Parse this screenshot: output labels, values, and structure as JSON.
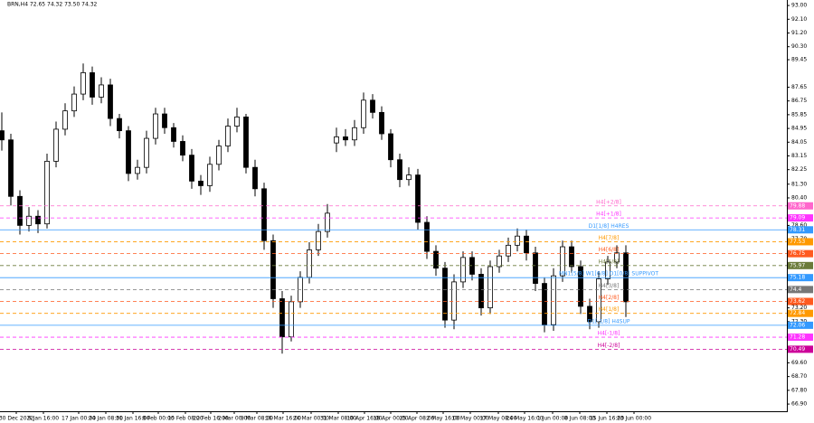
{
  "chart_data": {
    "type": "candlestick",
    "title": "BRN,H4  72.65 74.32 73.50 74.32",
    "ylim": [
      66.43,
      93.36
    ],
    "yticks": [
      {
        "value": 93.0,
        "label": "93.00"
      },
      {
        "value": 92.1,
        "label": "92.10"
      },
      {
        "value": 91.2,
        "label": "91.20"
      },
      {
        "value": 90.3,
        "label": "90.30"
      },
      {
        "value": 89.45,
        "label": "89.45"
      },
      {
        "value": 87.65,
        "label": "87.65"
      },
      {
        "value": 86.75,
        "label": "86.75"
      },
      {
        "value": 85.85,
        "label": "85.85"
      },
      {
        "value": 84.95,
        "label": "84.95"
      },
      {
        "value": 84.05,
        "label": "84.05"
      },
      {
        "value": 83.15,
        "label": "83.15"
      },
      {
        "value": 82.25,
        "label": "82.25"
      },
      {
        "value": 81.3,
        "label": "81.30"
      },
      {
        "value": 80.4,
        "label": "80.40"
      },
      {
        "value": 78.6,
        "label": "78.60"
      },
      {
        "value": 77.7,
        "label": "77.70"
      },
      {
        "value": 73.2,
        "label": "73.20"
      },
      {
        "value": 72.3,
        "label": "72.30"
      },
      {
        "value": 70.5,
        "label": "70.50"
      },
      {
        "value": 69.6,
        "label": "69.60"
      },
      {
        "value": 68.7,
        "label": "68.70"
      },
      {
        "value": 67.8,
        "label": "67.80"
      },
      {
        "value": 66.9,
        "label": "66.90"
      }
    ],
    "xlim": [
      -0.2,
      86.8
    ],
    "xticks": [
      {
        "value": 1.6,
        "label": "30 Dec 2022"
      },
      {
        "value": 4.6,
        "label": "9 Jan 16:00"
      },
      {
        "value": 8.5,
        "label": "17 Jan 00:00"
      },
      {
        "value": 11.5,
        "label": "24 Jan 08:00"
      },
      {
        "value": 14.5,
        "label": "31 Jan 16:00"
      },
      {
        "value": 17.3,
        "label": "8 Feb 00:00"
      },
      {
        "value": 20.3,
        "label": "15 Feb 08:00"
      },
      {
        "value": 23.1,
        "label": "22 Feb 16:00"
      },
      {
        "value": 25.7,
        "label": "2 Mar 00:00"
      },
      {
        "value": 28.2,
        "label": "9 Mar 08:00"
      },
      {
        "value": 31.1,
        "label": "16 Mar 16:00"
      },
      {
        "value": 34.2,
        "label": "24 Mar 00:00"
      },
      {
        "value": 37.2,
        "label": "31 Mar 08:00"
      },
      {
        "value": 40.1,
        "label": "10 Apr 16:00"
      },
      {
        "value": 43.0,
        "label": "18 Apr 00:00"
      },
      {
        "value": 45.9,
        "label": "25 Apr 08:00"
      },
      {
        "value": 48.8,
        "label": "2 May 16:00"
      },
      {
        "value": 51.8,
        "label": "10 May 00:00"
      },
      {
        "value": 54.9,
        "label": "17 May 08:00"
      },
      {
        "value": 57.8,
        "label": "24 May 16:00"
      },
      {
        "value": 60.9,
        "label": "1 Jun 00:00"
      },
      {
        "value": 63.9,
        "label": "8 Jun 08:00"
      },
      {
        "value": 66.9,
        "label": "15 Jun 16:00"
      },
      {
        "value": 69.9,
        "label": "23 Jun 00:00"
      }
    ],
    "up_color": "#ffffff",
    "down_color": "#000000",
    "open": [
      84.8,
      84.2,
      80.5,
      78.6,
      79.2,
      78.7,
      82.8,
      84.9,
      86.1,
      87.2,
      88.6,
      87.0,
      87.8,
      85.6,
      84.8,
      82.0,
      82.4,
      84.3,
      85.9,
      85.0,
      84.1,
      83.2,
      81.5,
      81.2,
      82.6,
      83.8,
      85.1,
      85.7,
      82.4,
      81.0,
      77.6,
      73.8,
      71.3,
      73.6,
      75.2,
      77.0,
      78.2,
      84.0,
      84.4,
      84.2,
      85.0,
      86.8,
      86.0,
      84.6,
      82.9,
      81.6,
      81.9,
      78.8,
      76.9,
      75.8,
      72.4,
      74.9,
      76.5,
      75.4,
      73.2,
      75.9,
      76.6,
      77.3,
      77.9,
      76.8,
      74.8,
      72.1,
      75.3,
      77.2,
      75.9,
      73.3,
      72.3,
      75.1,
      76.2,
      76.8
    ],
    "high": [
      86.0,
      84.6,
      80.9,
      79.8,
      79.6,
      83.3,
      85.4,
      86.6,
      87.7,
      89.2,
      89.0,
      88.3,
      88.2,
      85.9,
      85.1,
      82.9,
      84.8,
      86.3,
      86.3,
      85.3,
      84.5,
      83.6,
      81.9,
      83.1,
      84.2,
      85.6,
      86.3,
      85.9,
      82.9,
      81.4,
      78.0,
      74.3,
      74.0,
      75.6,
      77.5,
      78.7,
      80.0,
      85.0,
      84.9,
      85.5,
      87.3,
      87.2,
      86.4,
      84.9,
      83.3,
      82.4,
      82.3,
      79.2,
      77.3,
      76.2,
      75.4,
      76.9,
      76.9,
      75.8,
      76.3,
      77.0,
      77.8,
      78.4,
      78.3,
      77.2,
      75.2,
      75.8,
      77.6,
      77.6,
      76.3,
      73.8,
      75.6,
      76.6,
      77.3,
      77.3
    ],
    "low": [
      83.5,
      79.9,
      78.0,
      78.2,
      78.1,
      78.4,
      82.4,
      84.5,
      85.7,
      86.8,
      86.5,
      86.6,
      85.1,
      84.3,
      81.5,
      81.6,
      82.0,
      83.9,
      84.6,
      83.7,
      82.8,
      81.0,
      80.6,
      80.8,
      82.2,
      83.4,
      84.7,
      82.0,
      80.5,
      77.0,
      73.2,
      70.2,
      71.0,
      73.2,
      74.8,
      76.6,
      77.8,
      83.4,
      83.8,
      83.8,
      84.6,
      85.6,
      84.2,
      82.4,
      81.1,
      81.2,
      78.3,
      76.4,
      75.3,
      71.9,
      71.8,
      74.5,
      75.0,
      72.7,
      72.8,
      75.5,
      76.2,
      76.9,
      76.3,
      74.3,
      71.6,
      71.7,
      74.9,
      75.5,
      72.8,
      71.8,
      71.9,
      74.7,
      75.8,
      72.6
    ],
    "close": [
      84.2,
      80.5,
      78.6,
      79.2,
      78.7,
      82.8,
      84.9,
      86.1,
      87.2,
      88.6,
      87.0,
      87.8,
      85.6,
      84.8,
      82.0,
      82.4,
      84.3,
      85.9,
      85.0,
      84.1,
      83.2,
      81.5,
      81.2,
      82.6,
      83.8,
      85.1,
      85.7,
      82.4,
      81.0,
      77.6,
      73.8,
      71.3,
      73.6,
      75.2,
      77.0,
      78.2,
      79.4,
      84.4,
      84.2,
      85.0,
      86.8,
      86.0,
      84.6,
      82.9,
      81.6,
      81.9,
      78.8,
      76.9,
      75.8,
      72.4,
      74.9,
      76.5,
      75.4,
      73.2,
      75.9,
      76.6,
      77.3,
      77.9,
      76.8,
      74.8,
      72.1,
      75.3,
      77.2,
      75.9,
      73.3,
      72.3,
      75.1,
      76.2,
      76.8,
      73.6
    ],
    "levels": [
      {
        "name": "H4[+2/8]",
        "value": 79.88,
        "color": "#ff66cc",
        "dash": true
      },
      {
        "name": "H4[+1/8]",
        "value": 79.09,
        "color": "#ff33ff",
        "dash": true
      },
      {
        "name": "D1[1/8] H4RES",
        "value": 78.31,
        "color": "#3399ff",
        "dash": false
      },
      {
        "name": "H4[7/8]",
        "value": 77.53,
        "color": "#ff9900",
        "dash": true
      },
      {
        "name": "H4[6/8]",
        "value": 76.75,
        "color": "#ff5a1f",
        "dash": true
      },
      {
        "name": "H4[5/8]",
        "value": 75.97,
        "color": "#6b7b3a",
        "dash": true
      },
      {
        "name": "MN1[5/8] W1[6/8] D1[0/8] SUPPIVOT",
        "value": 75.18,
        "color": "#3399ff",
        "dash": false
      },
      {
        "name": "H4[3/8]",
        "value": 74.4,
        "color": "#777777",
        "dash": true
      },
      {
        "name": "H4[2/8]",
        "value": 73.62,
        "color": "#ff5a1f",
        "dash": true
      },
      {
        "name": "H4[1/8]",
        "value": 72.84,
        "color": "#ff9900",
        "dash": true
      },
      {
        "name": "D1[-1/8] H4SUP",
        "value": 72.06,
        "color": "#3399ff",
        "dash": false
      },
      {
        "name": "H4[-1/8]",
        "value": 71.28,
        "color": "#ff33ff",
        "dash": true
      },
      {
        "name": "H4[-2/8]",
        "value": 70.49,
        "color": "#cc0099",
        "dash": true
      }
    ]
  }
}
